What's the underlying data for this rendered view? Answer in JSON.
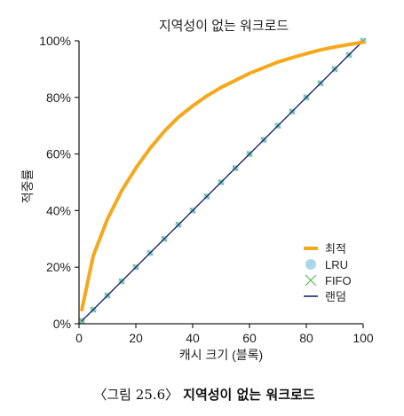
{
  "chart_data": {
    "type": "line",
    "title": "지역성이 없는 워크로드",
    "xlabel": "캐시 크기 (블록)",
    "ylabel": "적중률",
    "xlim": [
      0,
      100
    ],
    "ylim": [
      0,
      100
    ],
    "x_ticks": [
      "0",
      "20",
      "40",
      "60",
      "80",
      "100"
    ],
    "y_ticks": [
      "0%",
      "20%",
      "40%",
      "60%",
      "80%",
      "100%"
    ],
    "grid": false,
    "legend_position": "bottom-right",
    "x": [
      1,
      5,
      10,
      15,
      20,
      25,
      30,
      35,
      40,
      45,
      50,
      55,
      60,
      65,
      70,
      75,
      80,
      85,
      90,
      95,
      100
    ],
    "series": [
      {
        "name": "최적",
        "style": "line",
        "color": "#f5a81c",
        "values": [
          5,
          24,
          37,
          47,
          55,
          62,
          68,
          73,
          77,
          80.5,
          83.5,
          86,
          88.5,
          90.5,
          92.5,
          94,
          95.5,
          96.8,
          97.8,
          98.7,
          99.5
        ]
      },
      {
        "name": "LRU",
        "style": "circle-markers",
        "color": "#a9d8ec",
        "values": [
          1,
          5,
          10,
          15,
          20,
          25,
          30,
          35,
          40,
          45,
          50,
          55,
          60,
          65,
          70,
          75,
          80,
          85,
          90,
          95,
          100
        ]
      },
      {
        "name": "FIFO",
        "style": "x-markers",
        "color": "#5cb85c",
        "values": [
          1,
          5,
          10,
          15,
          20,
          25,
          30,
          35,
          40,
          45,
          50,
          55,
          60,
          65,
          70,
          75,
          80,
          85,
          90,
          95,
          100
        ]
      },
      {
        "name": "랜덤",
        "style": "line",
        "color": "#1a2a6c",
        "values": [
          1,
          5,
          10,
          15,
          20,
          25,
          30,
          35,
          40,
          45,
          50,
          55,
          60,
          65,
          70,
          75,
          80,
          85,
          90,
          95,
          100
        ]
      }
    ]
  },
  "caption": {
    "label": "〈그림 25.6〉",
    "text": "지역성이 없는 워크로드"
  }
}
